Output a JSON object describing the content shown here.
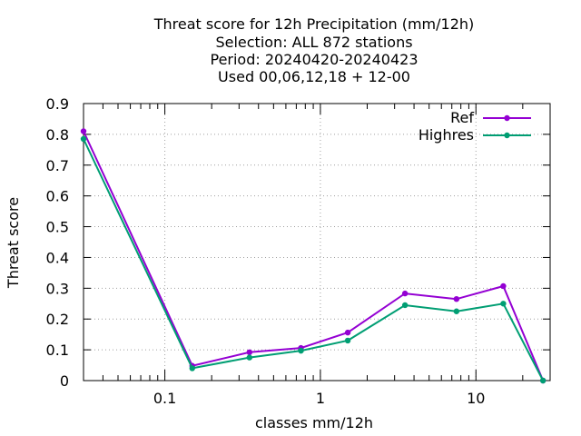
{
  "chart_data": {
    "type": "line",
    "title_lines": [
      "Threat score  for 12h Precipitation (mm/12h)",
      "Selection: ALL    872 stations",
      "Period: 20240420-20240423",
      "Used  00,06,12,18 + 12-00"
    ],
    "xlabel": "classes mm/12h",
    "ylabel": "Threat score",
    "xscale": "log",
    "xlim": [
      0.03,
      30
    ],
    "ylim": [
      0,
      0.9
    ],
    "x_ticks": [
      {
        "value": 0.1,
        "label": "0.1"
      },
      {
        "value": 1,
        "label": "1"
      },
      {
        "value": 10,
        "label": "10"
      }
    ],
    "y_ticks": [
      {
        "value": 0,
        "label": "0"
      },
      {
        "value": 0.1,
        "label": "0.1"
      },
      {
        "value": 0.2,
        "label": "0.2"
      },
      {
        "value": 0.3,
        "label": "0.3"
      },
      {
        "value": 0.4,
        "label": "0.4"
      },
      {
        "value": 0.5,
        "label": "0.5"
      },
      {
        "value": 0.6,
        "label": "0.6"
      },
      {
        "value": 0.7,
        "label": "0.7"
      },
      {
        "value": 0.8,
        "label": "0.8"
      },
      {
        "value": 0.9,
        "label": "0.9"
      }
    ],
    "grid": true,
    "legend_position": "top-right",
    "x": [
      0.03,
      0.15,
      0.35,
      0.75,
      1.5,
      3.5,
      7.5,
      15,
      27
    ],
    "series": [
      {
        "name": "Ref",
        "color": "#9400d3",
        "values": [
          0.81,
          0.048,
          0.092,
          0.106,
          0.156,
          0.283,
          0.265,
          0.307,
          0.0
        ]
      },
      {
        "name": "Highres",
        "color": "#009e73",
        "values": [
          0.785,
          0.04,
          0.075,
          0.097,
          0.13,
          0.245,
          0.225,
          0.25,
          0.0
        ]
      }
    ]
  }
}
